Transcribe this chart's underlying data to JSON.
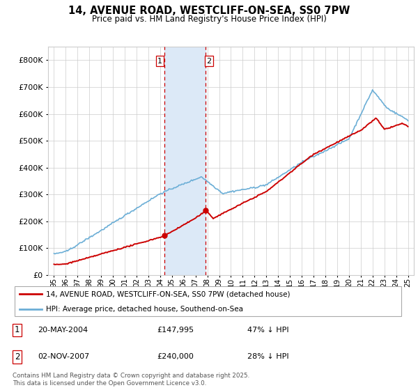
{
  "title": "14, AVENUE ROAD, WESTCLIFF-ON-SEA, SS0 7PW",
  "subtitle": "Price paid vs. HM Land Registry's House Price Index (HPI)",
  "legend_line1": "14, AVENUE ROAD, WESTCLIFF-ON-SEA, SS0 7PW (detached house)",
  "legend_line2": "HPI: Average price, detached house, Southend-on-Sea",
  "purchase1_date": "20-MAY-2004",
  "purchase1_price": "£147,995",
  "purchase1_hpi": "47% ↓ HPI",
  "purchase1_year": 2004.38,
  "purchase1_value": 147995,
  "purchase2_date": "02-NOV-2007",
  "purchase2_price": "£240,000",
  "purchase2_hpi": "28% ↓ HPI",
  "purchase2_year": 2007.84,
  "purchase2_value": 240000,
  "footer": "Contains HM Land Registry data © Crown copyright and database right 2025.\nThis data is licensed under the Open Government Licence v3.0.",
  "hpi_color": "#6baed6",
  "price_color": "#cc0000",
  "highlight_color": "#dce9f7",
  "vline_color": "#cc0000",
  "ylim": [
    0,
    850000
  ],
  "yticks": [
    0,
    100000,
    200000,
    300000,
    400000,
    500000,
    600000,
    700000,
    800000
  ],
  "ytick_labels": [
    "£0",
    "£100K",
    "£200K",
    "£300K",
    "£400K",
    "£500K",
    "£600K",
    "£700K",
    "£800K"
  ],
  "xlim": [
    1994.5,
    2025.5
  ],
  "xticks": [
    1995,
    1996,
    1997,
    1998,
    1999,
    2000,
    2001,
    2002,
    2003,
    2004,
    2005,
    2006,
    2007,
    2008,
    2009,
    2010,
    2011,
    2012,
    2013,
    2014,
    2015,
    2016,
    2017,
    2018,
    2019,
    2020,
    2021,
    2022,
    2023,
    2024,
    2025
  ]
}
